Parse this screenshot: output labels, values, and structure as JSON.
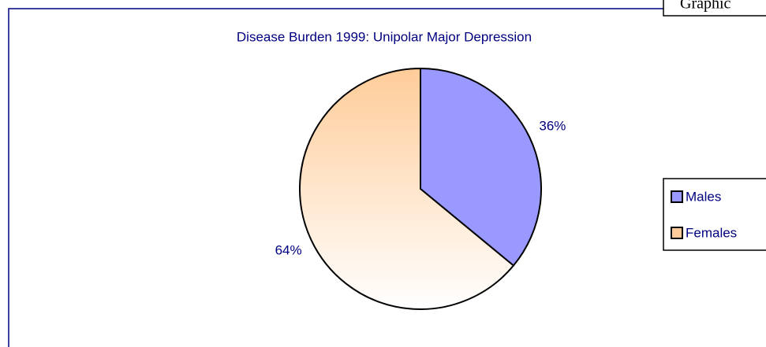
{
  "header": {
    "label": "Graphic"
  },
  "chart_data": {
    "type": "pie",
    "title": "Disease Burden 1999: Unipolar Major Depression",
    "categories": [
      "Males",
      "Females"
    ],
    "values": [
      36,
      64
    ],
    "value_labels": [
      "36%",
      "64%"
    ],
    "colors": [
      "#9999ff",
      "#ffcc99"
    ],
    "legend": "right"
  }
}
